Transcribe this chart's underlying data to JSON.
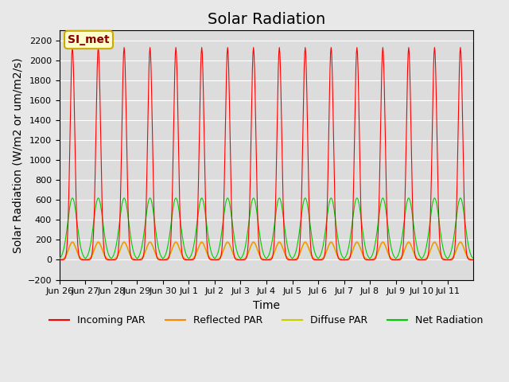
{
  "title": "Solar Radiation",
  "xlabel": "Time",
  "ylabel": "Solar Radiation (W/m2 or um/m2/s)",
  "ylim": [
    -200,
    2300
  ],
  "yticks": [
    -200,
    0,
    200,
    400,
    600,
    800,
    1000,
    1200,
    1400,
    1600,
    1800,
    2000,
    2200
  ],
  "background_color": "#e8e8e8",
  "plot_bg_color": "#dcdcdc",
  "grid_color": "#ffffff",
  "annotation_text": "SI_met",
  "annotation_bg": "#ffffcc",
  "annotation_border": "#ccaa00",
  "annotation_text_color": "#880000",
  "n_days": 16,
  "samples_per_day": 48,
  "peak_incoming": 2130,
  "peak_net": 620,
  "peak_reflected": 180,
  "peak_diffuse": 170,
  "night_net": -60,
  "colors": {
    "incoming": "#ff0000",
    "reflected": "#ff8800",
    "diffuse": "#cccc00",
    "net": "#00cc00"
  },
  "legend_labels": [
    "Incoming PAR",
    "Reflected PAR",
    "Diffuse PAR",
    "Net Radiation"
  ],
  "x_tick_labels": [
    "Jun 26",
    "Jun 27",
    "Jun 28",
    "Jun 29",
    "Jun 30",
    "Jul 1",
    "Jul 2",
    "Jul 3",
    "Jul 4",
    "Jul 5",
    "Jul 6",
    "Jul 7",
    "Jul 8",
    "Jul 9",
    "Jul 10",
    "Jul 11"
  ],
  "title_fontsize": 14,
  "axis_label_fontsize": 10,
  "tick_fontsize": 8,
  "legend_fontsize": 9
}
